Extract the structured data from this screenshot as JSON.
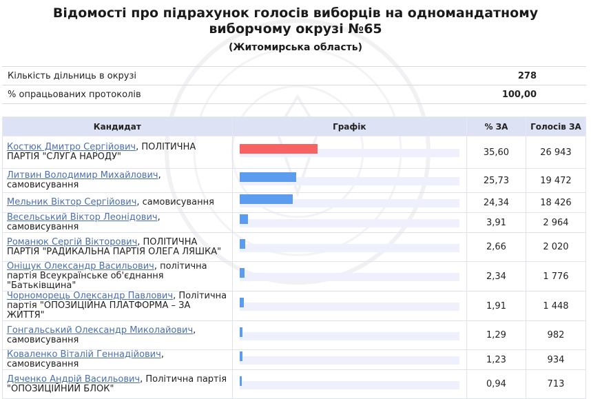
{
  "page": {
    "title_line1": "Відомості про підрахунок голосів виборців на одномандатному",
    "title_line2": "виборчому окрузі №65",
    "region": "(Житомирська область)"
  },
  "summary": [
    {
      "label": "Кількість дільниць в окрузі",
      "value": "278"
    },
    {
      "label": "% опрацьованих протоколів",
      "value": "100,00"
    }
  ],
  "table": {
    "headers": {
      "candidate": "Кандидат",
      "graph": "Графік",
      "percent": "% ЗА",
      "votes": "Голосів ЗА"
    },
    "rows": [
      {
        "name": "Костюк Дмитро Сергійович",
        "party": ", ПОЛІТИЧНА ПАРТІЯ \"СЛУГА НАРОДУ\"",
        "percent": "35,60",
        "votes": "26 943",
        "share": 35.6,
        "bar_color": "#f76363"
      },
      {
        "name": "Литвин Володимир Михайлович",
        "party": ", самовисування",
        "percent": "25,73",
        "votes": "19 472",
        "share": 25.73,
        "bar_color": "#5b9cef"
      },
      {
        "name": "Мельник Віктор Сергійович",
        "party": ", самовисування",
        "percent": "24,34",
        "votes": "18 426",
        "share": 24.34,
        "bar_color": "#5b9cef"
      },
      {
        "name": "Весельський Віктор Леонідович",
        "party": ", самовисування",
        "percent": "3,91",
        "votes": "2 964",
        "share": 3.91,
        "bar_color": "#5b9cef"
      },
      {
        "name": "Романюк Сергій Вікторович",
        "party": ", ПОЛІТИЧНА ПАРТІЯ \"РАДИКАЛЬНА ПАРТІЯ ОЛЕГА ЛЯШКА\"",
        "percent": "2,66",
        "votes": "2 020",
        "share": 2.66,
        "bar_color": "#5b9cef"
      },
      {
        "name": "Оніщук Олександр Васильович",
        "party": ", політична партія Всеукраїнське об'єднання \"Батьківщина\"",
        "percent": "2,34",
        "votes": "1 776",
        "share": 2.34,
        "bar_color": "#5b9cef"
      },
      {
        "name": "Чорноморець Олександр Павлович",
        "party": ", Політична партія \"ОПОЗИЦІЙНА ПЛАТФОРМА – ЗА ЖИТТЯ\"",
        "percent": "1,91",
        "votes": "1 448",
        "share": 1.91,
        "bar_color": "#5b9cef"
      },
      {
        "name": "Гонгальський Олександр Миколайович",
        "party": ", самовисування",
        "percent": "1,29",
        "votes": "982",
        "share": 1.29,
        "bar_color": "#5b9cef"
      },
      {
        "name": "Коваленко Віталій Геннадійович",
        "party": ", самовисування",
        "percent": "1,23",
        "votes": "934",
        "share": 1.23,
        "bar_color": "#5b9cef"
      },
      {
        "name": "Дяченко Андрій Васильович",
        "party": ", Політична партія \"ОПОЗИЦІЙНИЙ БЛОК\"",
        "percent": "0,94",
        "votes": "713",
        "share": 0.94,
        "bar_color": "#5b9cef"
      }
    ]
  }
}
